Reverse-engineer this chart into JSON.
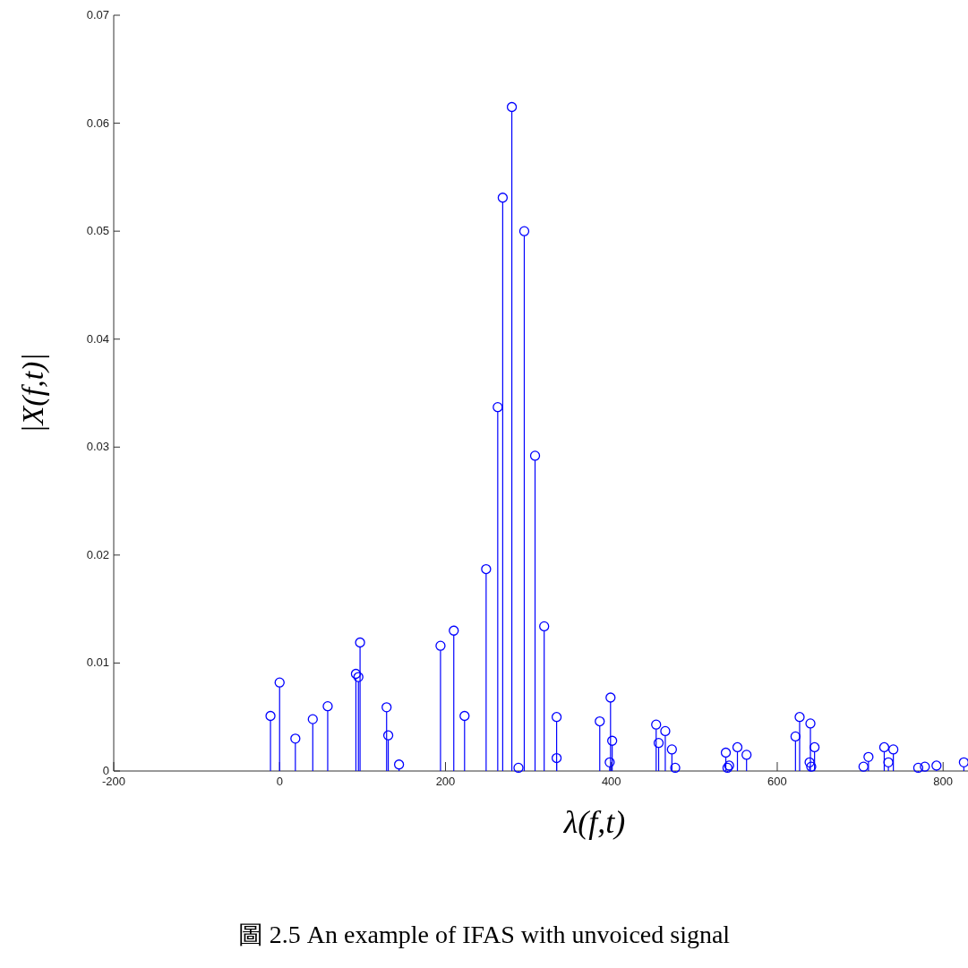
{
  "chart_data": {
    "type": "lollipop",
    "xlabel": "λ(f,t)",
    "ylabel": "|X(f,t)|",
    "annotations": [
      "圖 2.5 An example of IFAS with unvoiced signal"
    ],
    "xlim": [
      -200,
      830
    ],
    "ylim": [
      0,
      0.07
    ],
    "xticks": [
      -200,
      0,
      200,
      400,
      600,
      800
    ],
    "yticks": [
      0,
      0.01,
      0.02,
      0.03,
      0.04,
      0.05,
      0.06,
      0.07
    ],
    "marker": "circle",
    "grid": false,
    "series": [
      {
        "color": "#0000ff",
        "x": [
          -11,
          0,
          19,
          40,
          58,
          92,
          95,
          97,
          129,
          131,
          144,
          194,
          210,
          223,
          249,
          263,
          269,
          280,
          288,
          295,
          308,
          319,
          334,
          334,
          386,
          399,
          401,
          398,
          454,
          457,
          465,
          473,
          477,
          538,
          540,
          542,
          552,
          563,
          622,
          627,
          639,
          640,
          641,
          645,
          704,
          710,
          729,
          734,
          740,
          770,
          778,
          792,
          825
        ],
        "values": [
          0.0051,
          0.0082,
          0.003,
          0.0048,
          0.006,
          0.009,
          0.0087,
          0.0119,
          0.0059,
          0.0033,
          0.0006,
          0.0116,
          0.013,
          0.0051,
          0.0187,
          0.0337,
          0.0531,
          0.0615,
          0.0003,
          0.05,
          0.0292,
          0.0134,
          0.005,
          0.0012,
          0.0046,
          0.0068,
          0.0028,
          0.0008,
          0.0043,
          0.0026,
          0.0037,
          0.002,
          0.0003,
          0.0017,
          0.0003,
          0.0005,
          0.0022,
          0.0015,
          0.0032,
          0.005,
          0.0008,
          0.0044,
          0.0004,
          0.0022,
          0.0004,
          0.0013,
          0.0022,
          0.0008,
          0.002,
          0.0003,
          0.0004,
          0.0005,
          0.0008
        ]
      }
    ]
  }
}
